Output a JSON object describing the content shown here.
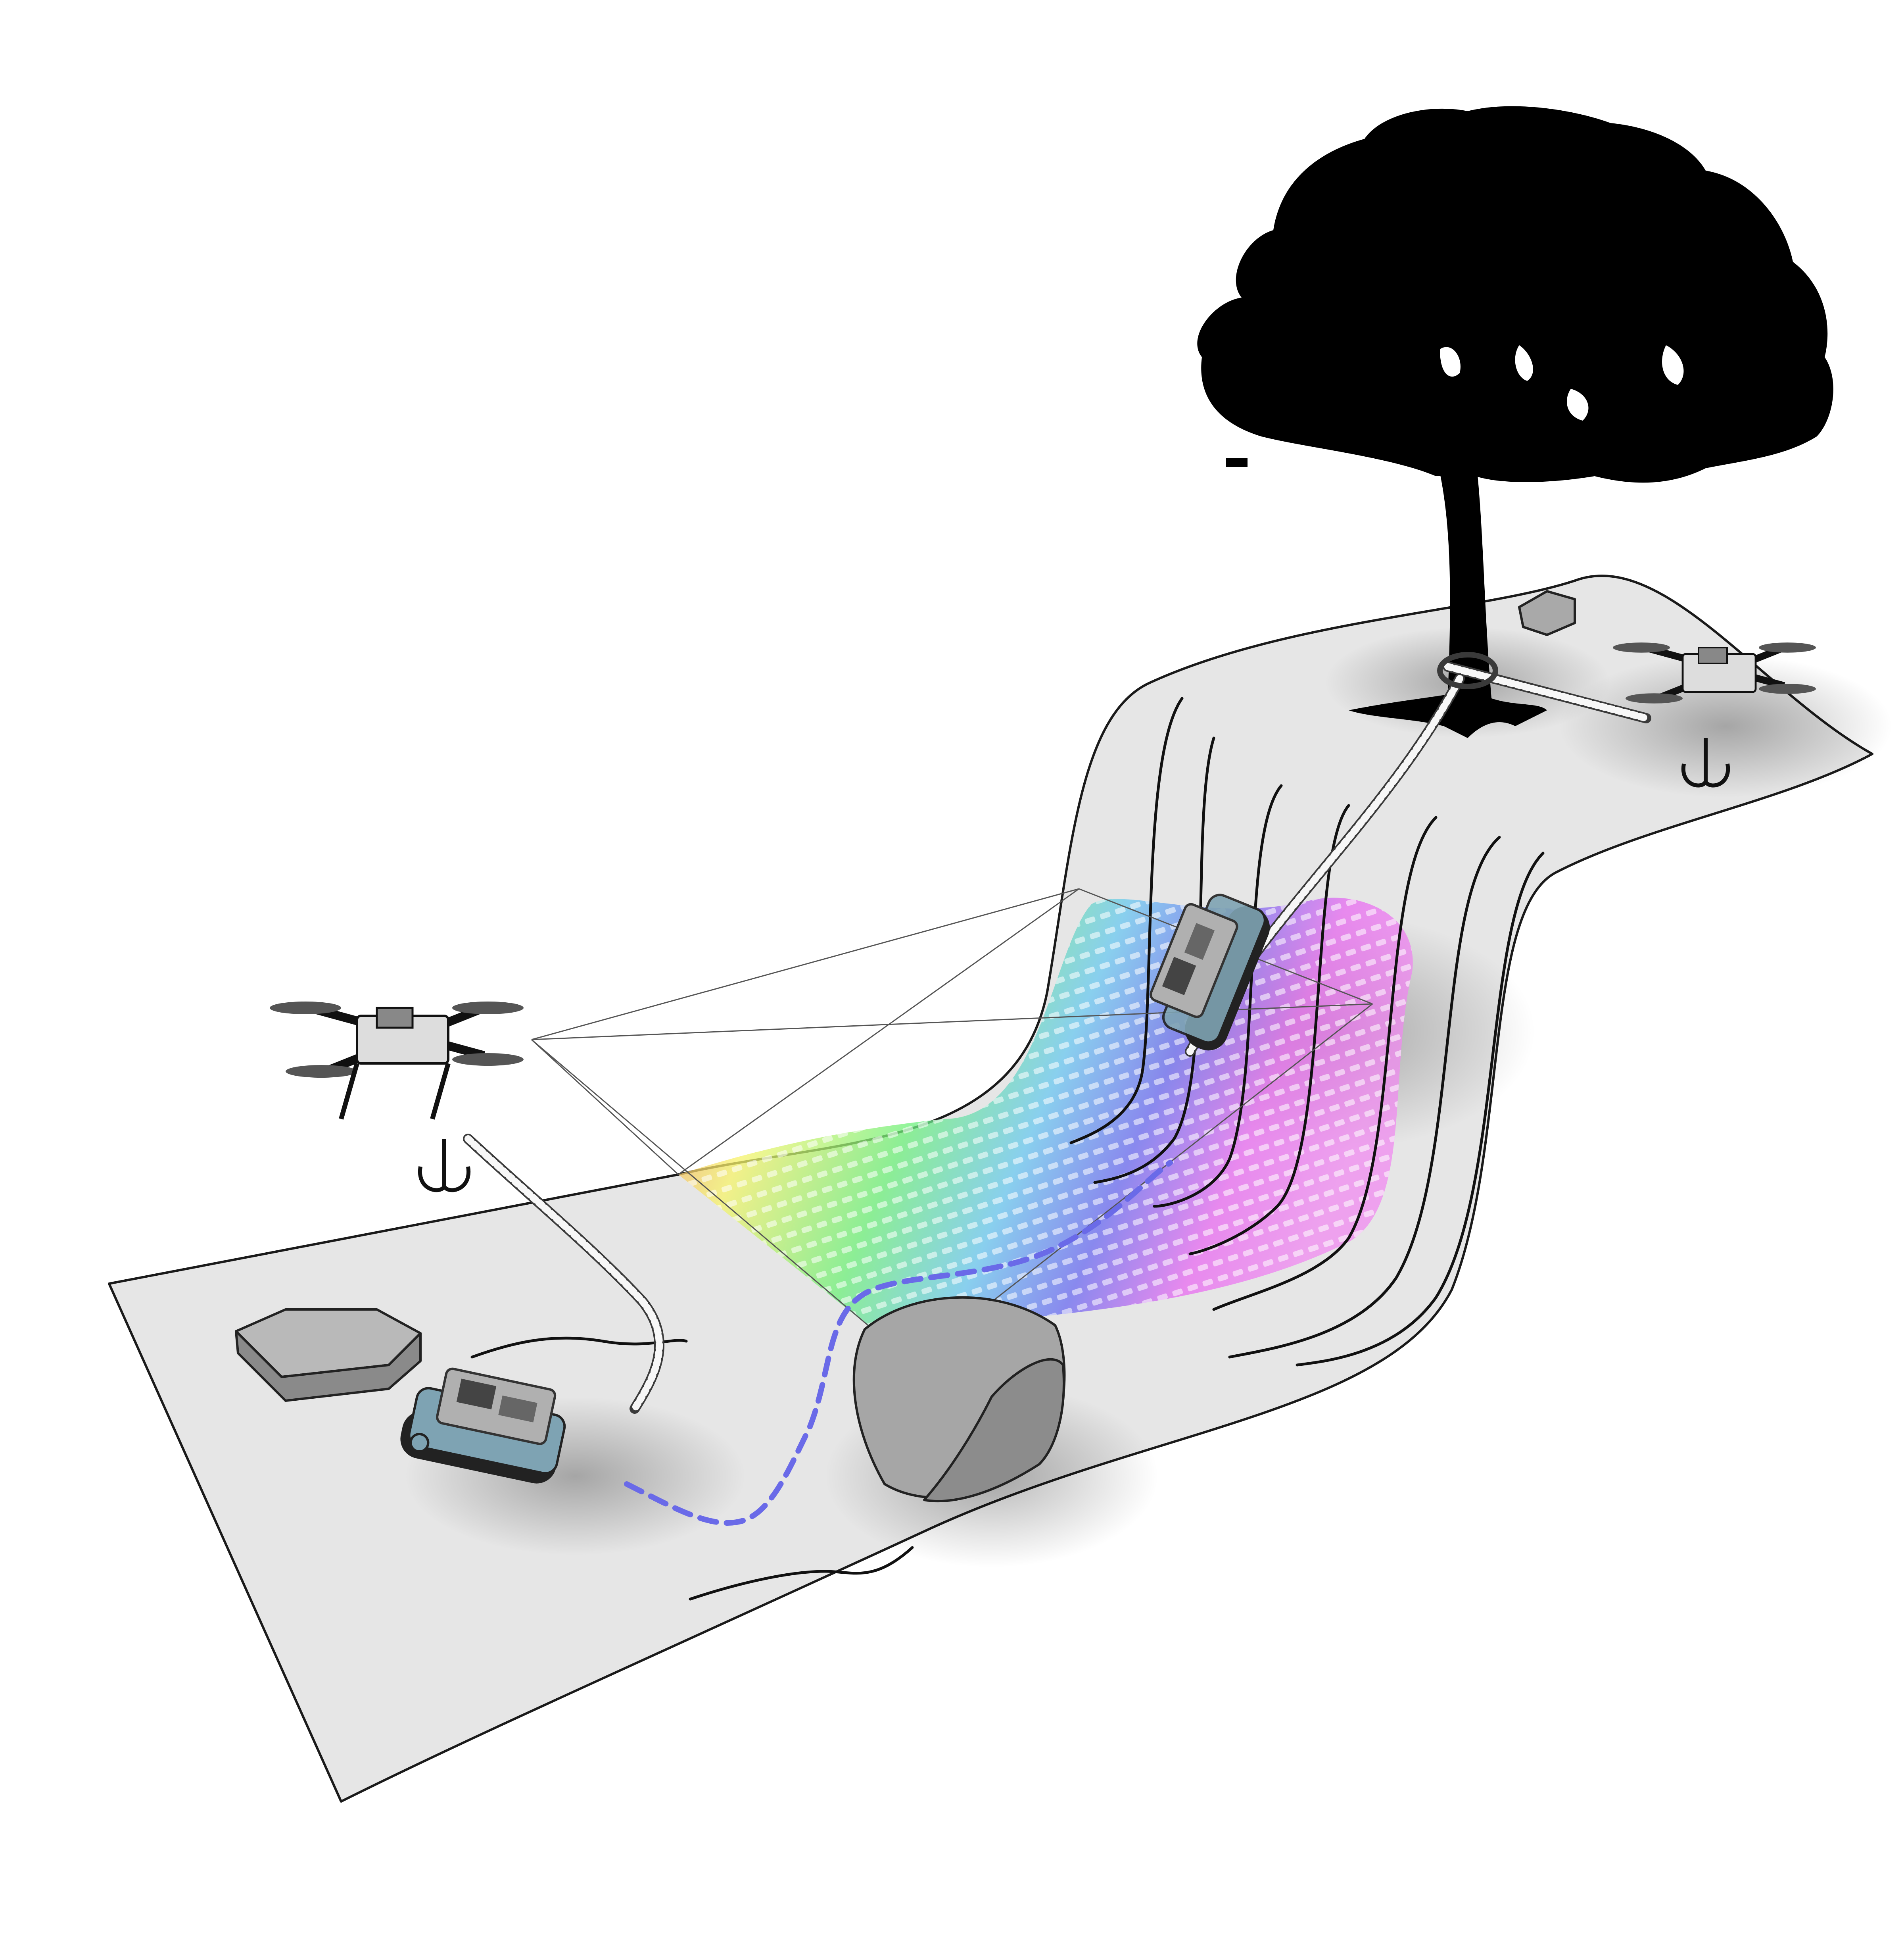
{
  "colors": {
    "terrain": "#e6e6e6",
    "outline": "#1a1a1a",
    "tree": "#000000",
    "rock": "#9a9a9a",
    "rover_body": "#7ea3b3",
    "planned_path": "#6a6ae8",
    "elevation_map_gradient": [
      "#f06a6a",
      "#f7f36a",
      "#6ef07a",
      "#6ac8f0",
      "#6a6af0",
      "#e86af0"
    ]
  },
  "icons": [
    "tree-icon",
    "drone-icon",
    "rover-icon",
    "rock-icon",
    "rope-icon",
    "grappling-hook-icon"
  ]
}
